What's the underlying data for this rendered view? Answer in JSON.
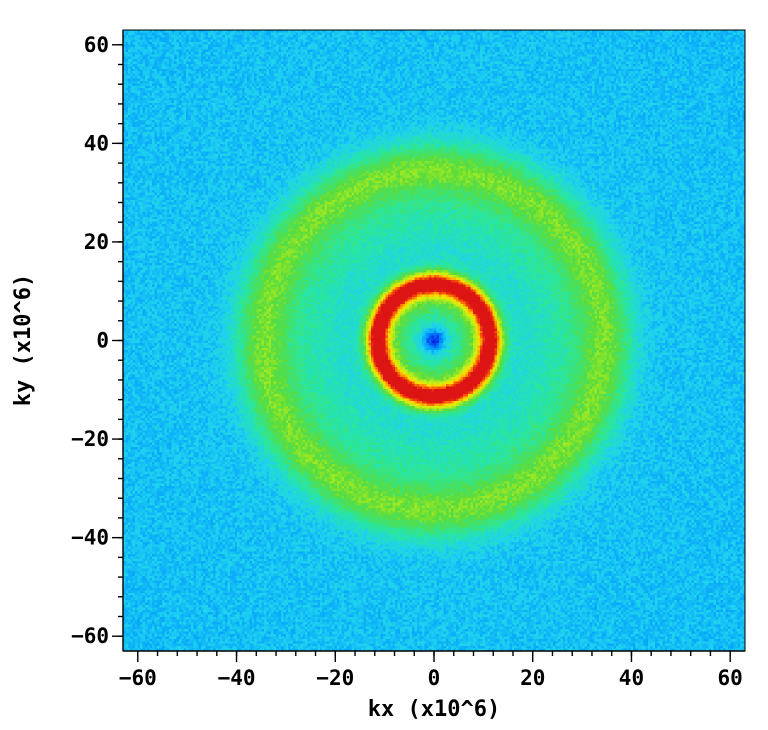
{
  "chart_data": {
    "type": "heatmap",
    "title": "",
    "xlabel": "kx (x10^6)",
    "ylabel": "ky (x10^6)",
    "xlim": [
      -63,
      63
    ],
    "ylim": [
      -63,
      63
    ],
    "x_ticks": [
      -60,
      -40,
      -20,
      0,
      20,
      40,
      60
    ],
    "y_ticks": [
      -60,
      -40,
      -20,
      0,
      20,
      40,
      60
    ],
    "x_tick_labels": [
      "−60",
      "−40",
      "−20",
      "0",
      "20",
      "40",
      "60"
    ],
    "y_tick_labels": [
      "−60",
      "−40",
      "−20",
      "0",
      "20",
      "40",
      "60"
    ],
    "minor_tick_step": 4,
    "grid": false,
    "legend": "none",
    "colormap": "rainbow",
    "colors": {
      "background": "#1fd0f0",
      "inner_ring": "#e8281c",
      "outer_ring": "#52dc44",
      "center_spot": "#0a38d8"
    },
    "features": {
      "background_level": 0.32,
      "center_spot": {
        "kx": 0,
        "ky": 0,
        "level": 0.08
      },
      "rings": [
        {
          "name": "inner ring",
          "radius": 11.5,
          "peak_level": 0.95
        },
        {
          "name": "outer ring",
          "radius": 35,
          "peak_level": 0.58
        }
      ]
    }
  }
}
